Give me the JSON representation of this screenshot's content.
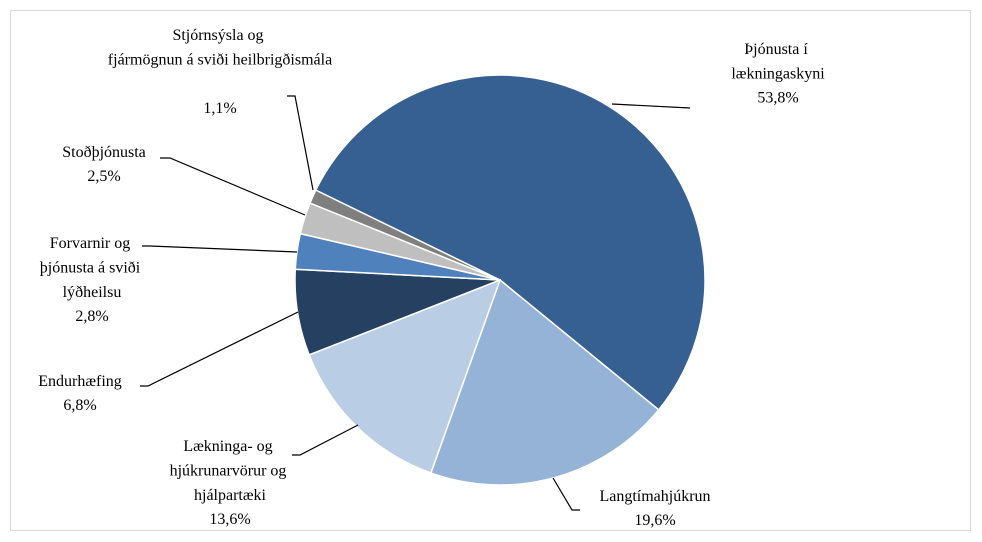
{
  "chart_data": {
    "type": "pie",
    "categories": [
      "Þjónusta í lækningaskyni",
      "Langtímahjúkrun",
      "Lækninga- og hjúkrunarvörur og hjálpartæki",
      "Endurhæfing",
      "Forvarnir og þjónusta á sviði lýðheilsu",
      "Stoðþjónusta",
      "Stjórnsýsla og fjármögnun á sviði heilbrigðismála"
    ],
    "values": [
      53.8,
      19.6,
      13.6,
      6.8,
      2.8,
      2.5,
      1.1
    ],
    "value_labels": [
      "53,8%",
      "19,6%",
      "13,6%",
      "6,8%",
      "2,8%",
      "2,5%",
      "1,1%"
    ],
    "colors": [
      "#376092",
      "#95b3d7",
      "#b9cde5",
      "#254061",
      "#4f81bd",
      "#bfbfbf",
      "#7f7f7f"
    ]
  }
}
